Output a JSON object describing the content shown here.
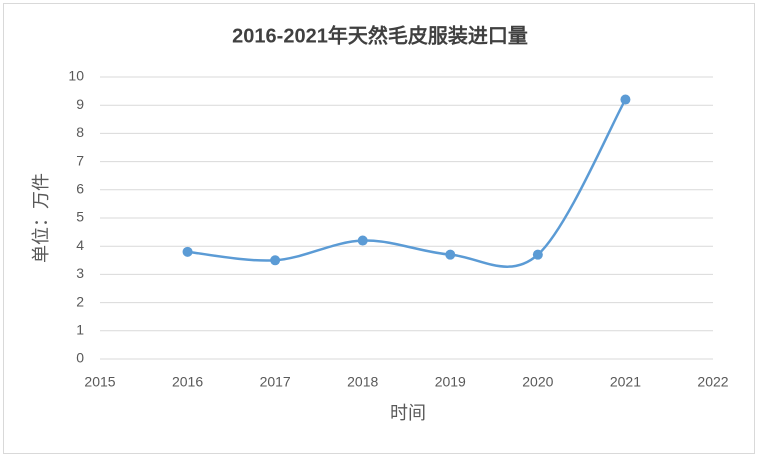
{
  "chart_data": {
    "type": "line",
    "title": "2016-2021年天然毛皮服装进口量",
    "x_label": "时间",
    "y_label": "单位：万件",
    "x": [
      2016,
      2017,
      2018,
      2019,
      2020,
      2021
    ],
    "values": [
      3.8,
      3.5,
      4.2,
      3.7,
      3.7,
      9.2
    ],
    "color": "#5b9bd5",
    "smooth": true,
    "xlim": [
      2015,
      2022
    ],
    "xticks": [
      2015,
      2016,
      2017,
      2018,
      2019,
      2020,
      2021,
      2022
    ],
    "ylim": [
      0,
      10
    ],
    "yticks": [
      0,
      1,
      2,
      3,
      4,
      5,
      6,
      7,
      8,
      9,
      10
    ],
    "grid": true
  }
}
